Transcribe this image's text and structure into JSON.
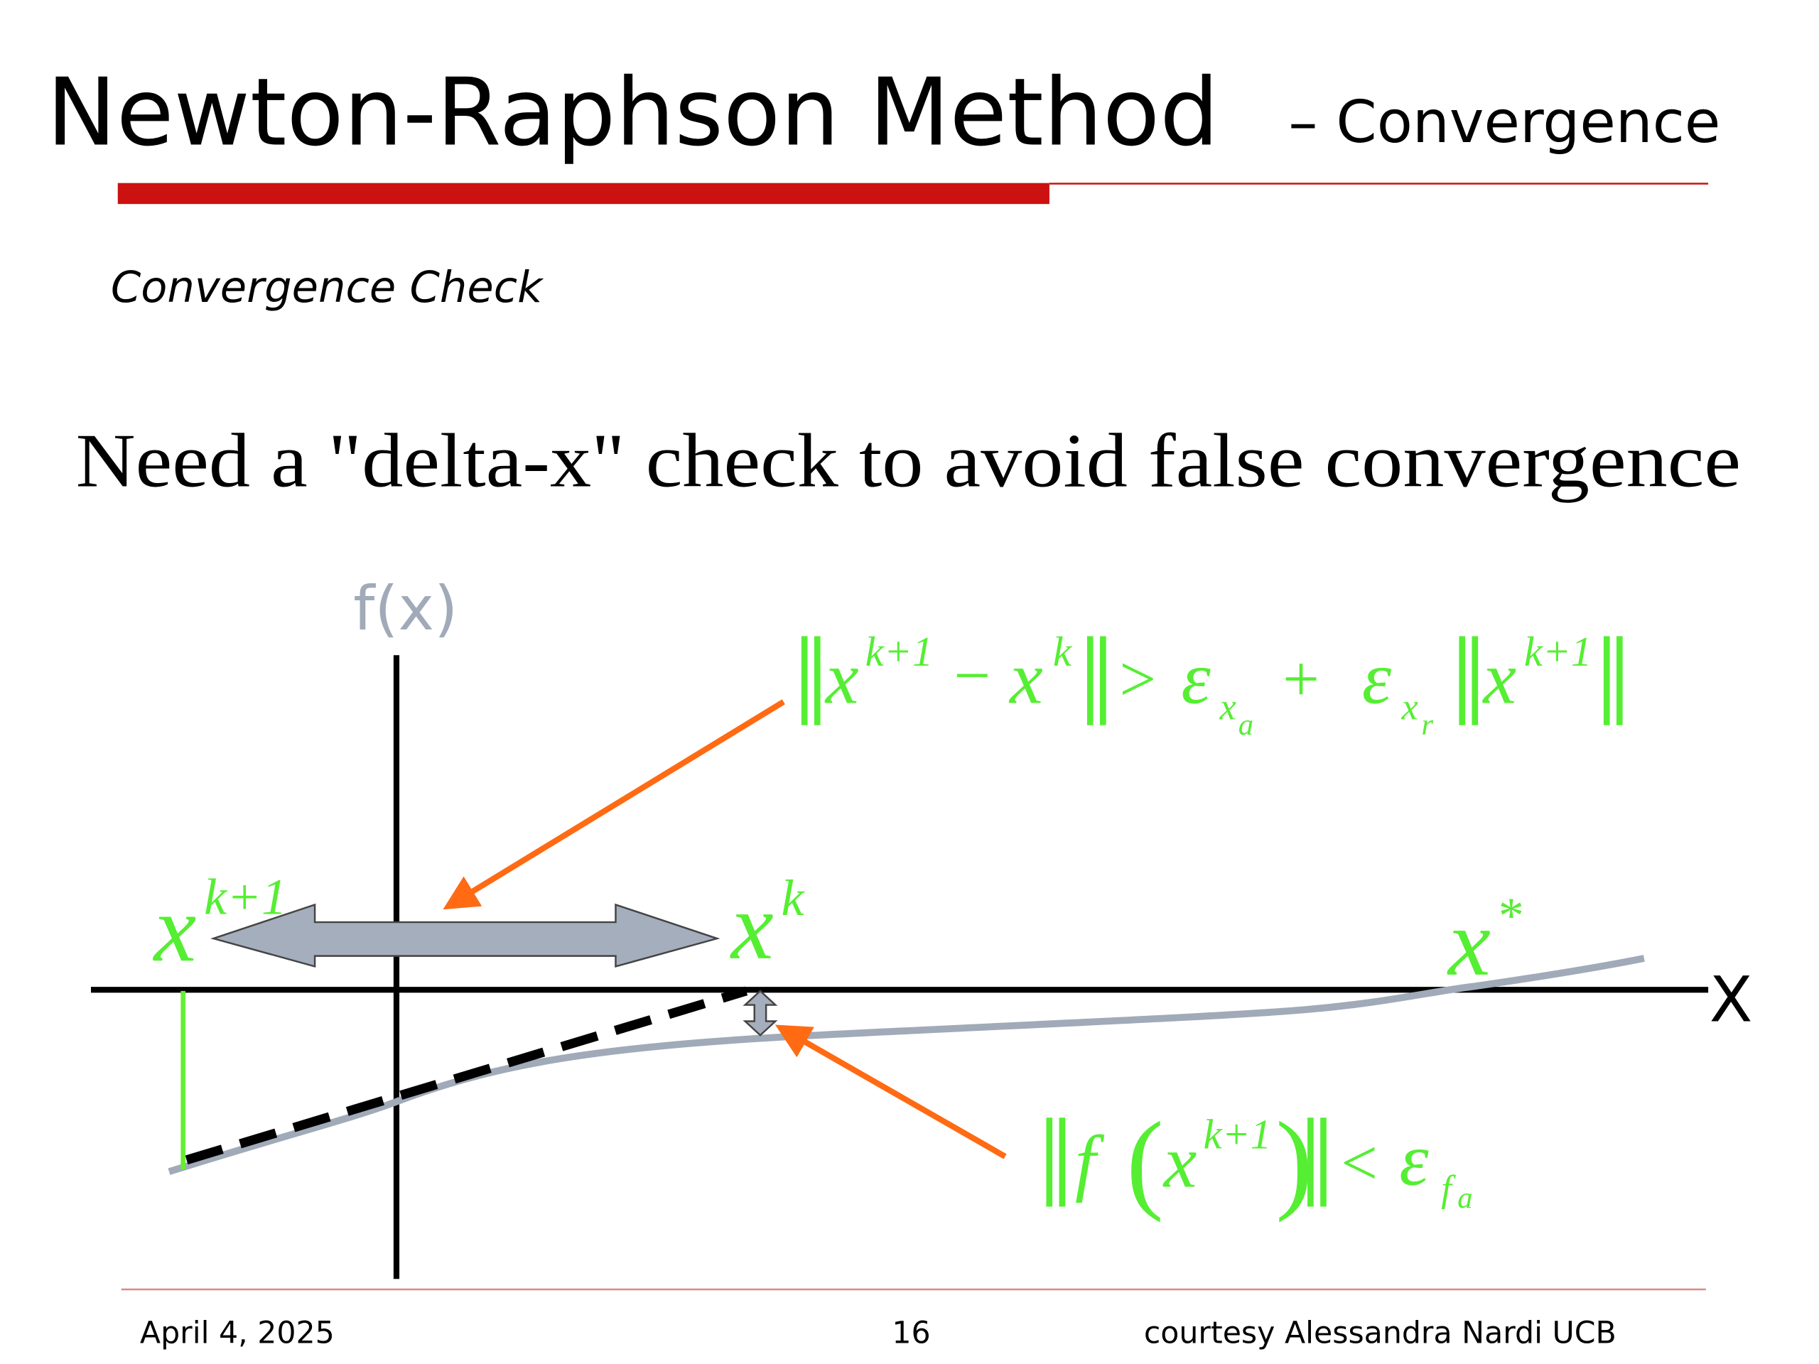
{
  "slide": {
    "title": "Newton-Raphson Method",
    "title_suffix": "– Convergence",
    "section": "Convergence Check",
    "heading": "Need a \"delta-x\" check to avoid false convergence",
    "diagram": {
      "y_axis_label": "f(x)",
      "x_axis_label": "X",
      "x_next": {
        "base": "x",
        "sup": "k+1"
      },
      "x_curr": {
        "base": "x",
        "sup": "k"
      },
      "x_star": {
        "base": "x",
        "sup": "*"
      },
      "delta_x_condition": [
        "‖",
        "x",
        "k+1",
        "−",
        "x",
        "k",
        "‖",
        ">",
        "ε",
        "x",
        "a",
        "+",
        "ε",
        "x",
        "r",
        "‖",
        "x",
        "k+1",
        "‖"
      ],
      "residual_condition": [
        "‖",
        "f",
        "(",
        "x",
        "k+1",
        ")",
        "‖",
        "<",
        "ε",
        "f",
        "a"
      ]
    },
    "footer": {
      "date": "April 4, 2025",
      "page": "16",
      "credit": "courtesy Alessandra Nardi UCB"
    }
  }
}
